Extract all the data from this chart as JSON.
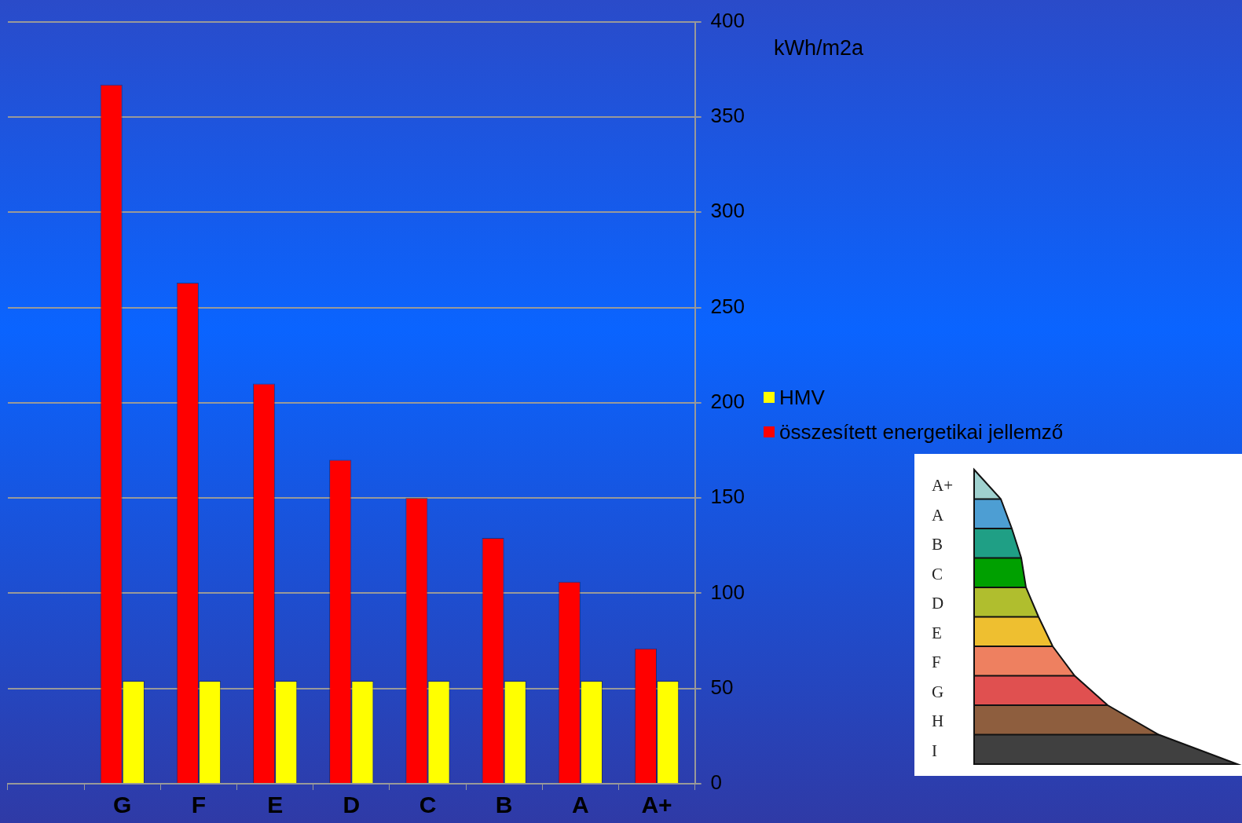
{
  "chart_data": {
    "type": "bar",
    "ylabel": "kWh/m2a",
    "categories": [
      null,
      "G",
      "F",
      "E",
      "D",
      "C",
      "B",
      "A",
      "A+"
    ],
    "series": [
      {
        "name": "összesített energetikai jellemző",
        "color": "#ff0000",
        "values": [
          null,
          367,
          263,
          210,
          170,
          150,
          129,
          106,
          71
        ]
      },
      {
        "name": "HMV",
        "color": "#ffff00",
        "values": [
          null,
          54,
          54,
          54,
          54,
          54,
          54,
          54,
          54
        ]
      }
    ],
    "ylim": [
      0,
      400
    ],
    "yticks": [
      0,
      50,
      100,
      150,
      200,
      250,
      300,
      350,
      400
    ],
    "grid": "y",
    "legend": "right",
    "annotations": [
      "A+",
      "A",
      "B",
      "C",
      "D",
      "E",
      "F",
      "G",
      "H",
      "I"
    ]
  }
}
